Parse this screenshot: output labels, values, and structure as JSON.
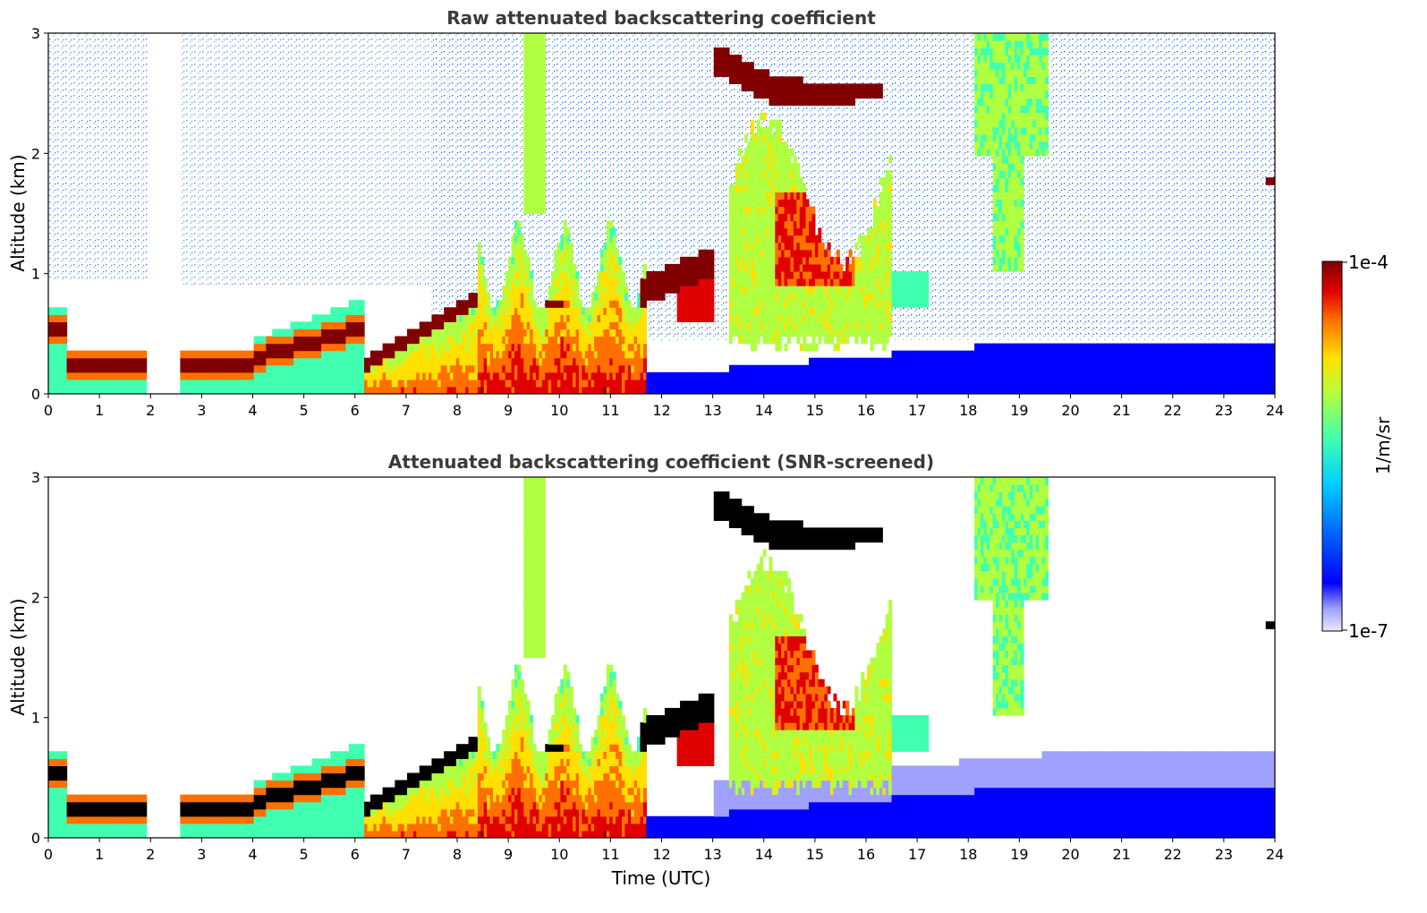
{
  "chart_data": [
    {
      "type": "heatmap",
      "title": "Raw attenuated backscattering coefficient",
      "xlabel": "",
      "ylabel": "Altitude (km)",
      "xlim": [
        0,
        24
      ],
      "ylim": [
        0,
        3
      ],
      "x_ticks": [
        "0",
        "1",
        "2",
        "3",
        "4",
        "5",
        "6",
        "7",
        "8",
        "9",
        "10",
        "11",
        "12",
        "13",
        "14",
        "15",
        "16",
        "17",
        "18",
        "19",
        "20",
        "21",
        "22",
        "23",
        "24"
      ],
      "y_ticks": [
        "0",
        "1",
        "2",
        "3"
      ],
      "grid": false,
      "missing_data_gap_hours": [
        1.95,
        2.6
      ],
      "features": [
        {
          "name": "boundary layer aerosol (night)",
          "t_start": 0,
          "t_end": 6.2,
          "alt_bottom": 0.15,
          "alt_top": 0.4,
          "intensity": "high"
        },
        {
          "name": "rising aerosol top",
          "t_start": 6.2,
          "t_end": 8.4,
          "alt_bottom": 0.25,
          "alt_top": 0.85,
          "intensity": "high"
        },
        {
          "name": "convective mixed layer",
          "t_start": 8.4,
          "t_end": 11.6,
          "alt_bottom": 0,
          "alt_top": 1.4,
          "intensity": "medium-high"
        },
        {
          "name": "cloud layer",
          "t_start": 11.6,
          "t_end": 13.0,
          "alt_bottom": 0.7,
          "alt_top": 1.2,
          "intensity": "high"
        },
        {
          "name": "upper cloud",
          "t_start": 13.0,
          "t_end": 16.3,
          "alt_bottom": 2.4,
          "alt_top": 2.85,
          "intensity": "saturated"
        },
        {
          "name": "cloud columns",
          "t_start": 13.3,
          "t_end": 16.5,
          "alt_bottom": 0.35,
          "alt_top": 2.3,
          "intensity": "medium"
        },
        {
          "name": "precipitation streak",
          "t_start": 18.1,
          "t_end": 19.7,
          "alt_bottom": 1.0,
          "alt_top": 3.0,
          "intensity": "medium"
        },
        {
          "name": "evening surface layer",
          "t_start": 11.6,
          "t_end": 24,
          "alt_bottom": 0,
          "alt_top": 0.45,
          "intensity": "low"
        }
      ]
    },
    {
      "type": "heatmap",
      "title": "Attenuated backscattering coefficient (SNR-screened)",
      "xlabel": "Time (UTC)",
      "ylabel": "Altitude (km)",
      "xlim": [
        0,
        24
      ],
      "ylim": [
        0,
        3
      ],
      "x_ticks": [
        "0",
        "1",
        "2",
        "3",
        "4",
        "5",
        "6",
        "7",
        "8",
        "9",
        "10",
        "11",
        "12",
        "13",
        "14",
        "15",
        "16",
        "17",
        "18",
        "19",
        "20",
        "21",
        "22",
        "23",
        "24"
      ],
      "y_ticks": [
        "0",
        "1",
        "2",
        "3"
      ],
      "grid": false,
      "note_saturated_values_shown_in": "black"
    }
  ],
  "colorbar": {
    "label": "1/m/sr",
    "max_label": "1e-4",
    "min_label": "1e-7",
    "scale": "log",
    "range": [
      1e-07,
      0.0001
    ],
    "colors": [
      "#e8e8ff",
      "#a0a0ff",
      "#0000ff",
      "#0070ff",
      "#00d0ff",
      "#40ffb0",
      "#b0ff40",
      "#ffe000",
      "#ff7000",
      "#e00000",
      "#800000"
    ]
  },
  "colors": {
    "saturated": "#000000",
    "axis": "#000000",
    "title": "#3a3a3a"
  }
}
